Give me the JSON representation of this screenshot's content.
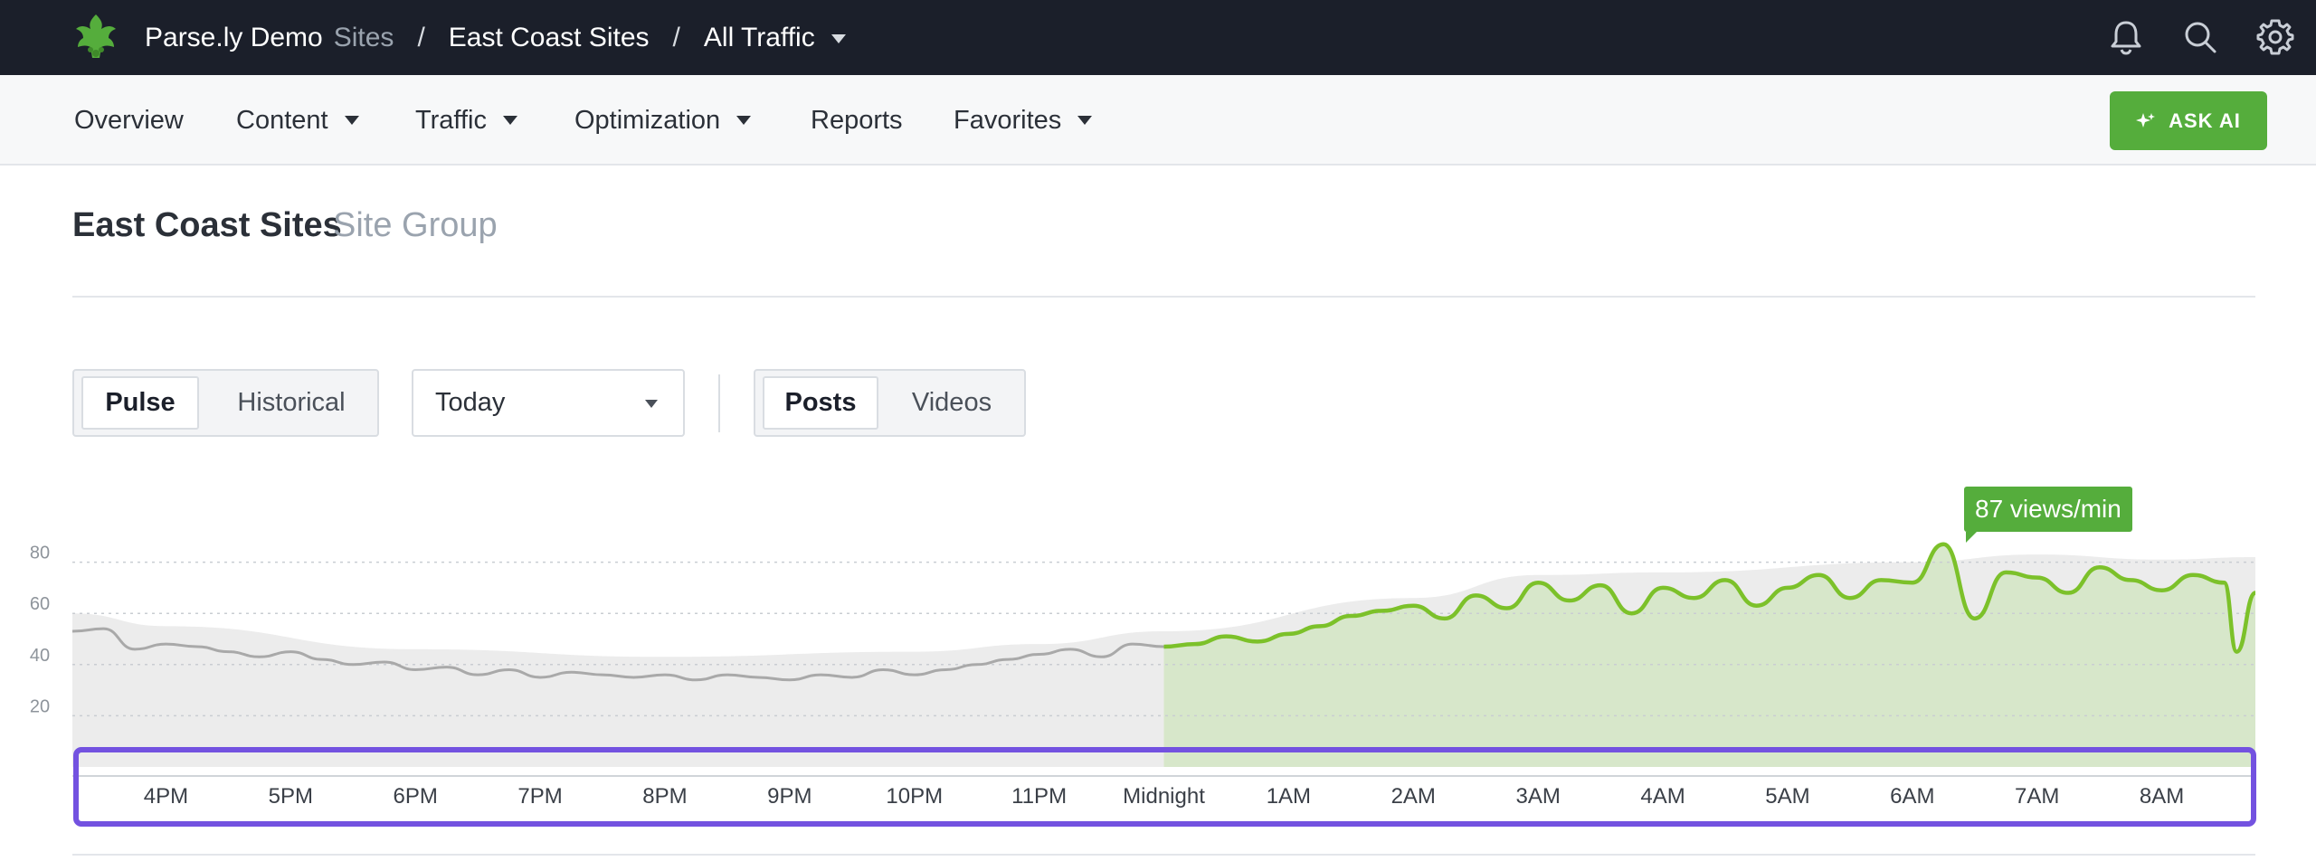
{
  "topbar": {
    "app_name": "Parse.ly Demo",
    "sites_label": "Sites",
    "crumb_sep": "/",
    "crumb_group": "East Coast Sites",
    "crumb_view": "All Traffic",
    "background": "#1b1f2a",
    "icons": [
      "bell-icon",
      "search-icon",
      "gear-icon",
      "user-icon"
    ]
  },
  "nav": {
    "items": [
      {
        "label": "Overview",
        "has_menu": false
      },
      {
        "label": "Content",
        "has_menu": true
      },
      {
        "label": "Traffic",
        "has_menu": true
      },
      {
        "label": "Optimization",
        "has_menu": true
      },
      {
        "label": "Reports",
        "has_menu": false
      },
      {
        "label": "Favorites",
        "has_menu": true
      }
    ],
    "ask_ai_label": "ASK AI",
    "accent": "#55ad3c"
  },
  "header": {
    "title": "East Coast Sites",
    "subtitle": "Site Group"
  },
  "controls": {
    "mode": {
      "options": [
        "Pulse",
        "Historical"
      ],
      "selected": "Pulse"
    },
    "period": {
      "value": "Today"
    },
    "content_type": {
      "options": [
        "Posts",
        "Videos"
      ],
      "selected": "Posts"
    }
  },
  "chart_data": {
    "type": "line",
    "tooltip": "87 views/min",
    "y_ticks": [
      "80",
      "60",
      "40",
      "20"
    ],
    "ylim": [
      0,
      100
    ],
    "grid": true,
    "x_ticks": [
      "4PM",
      "5PM",
      "6PM",
      "7PM",
      "8PM",
      "9PM",
      "10PM",
      "11PM",
      "Midnight",
      "1AM",
      "2AM",
      "3AM",
      "4AM",
      "5AM",
      "6AM",
      "7AM",
      "8AM"
    ],
    "x_range": [
      -0.75,
      16.75
    ],
    "colors": {
      "previous": "#a9a9a9",
      "today": "#7cc12a",
      "today_fill": "#d5e7c7",
      "band": "#ececec"
    },
    "series": [
      {
        "key": "previous",
        "x": [
          -0.75,
          -0.5,
          -0.25,
          0,
          0.25,
          0.5,
          0.75,
          1,
          1.25,
          1.5,
          1.75,
          2,
          2.25,
          2.5,
          2.75,
          3,
          3.25,
          3.5,
          3.75,
          4,
          4.25,
          4.5,
          4.75,
          5,
          5.25,
          5.5,
          5.75,
          6,
          6.25,
          6.5,
          6.75,
          7,
          7.25,
          7.5,
          7.75,
          8
        ],
        "values": [
          53,
          54,
          46,
          48,
          47,
          45,
          43,
          45,
          42,
          40,
          41,
          38,
          39,
          36,
          38,
          35,
          37,
          36,
          35,
          36,
          34,
          36,
          35,
          34,
          36,
          35,
          38,
          36,
          38,
          40,
          42,
          44,
          46,
          43,
          48,
          47
        ]
      },
      {
        "key": "today",
        "x": [
          8,
          8.25,
          8.5,
          8.75,
          9,
          9.25,
          9.5,
          9.75,
          10,
          10.25,
          10.5,
          10.75,
          11,
          11.25,
          11.5,
          11.75,
          12,
          12.25,
          12.5,
          12.75,
          13,
          13.25,
          13.5,
          13.75,
          14,
          14.25,
          14.5,
          14.75,
          15,
          15.25,
          15.5,
          15.75,
          16,
          16.25,
          16.5,
          16.6,
          16.75
        ],
        "values": [
          47,
          48,
          51,
          49,
          52,
          55,
          59,
          61,
          63,
          58,
          67,
          62,
          72,
          65,
          71,
          60,
          70,
          66,
          73,
          63,
          70,
          75,
          66,
          73,
          72,
          87,
          58,
          76,
          74,
          68,
          78,
          73,
          69,
          75,
          72,
          45,
          68
        ]
      }
    ],
    "band_upper": [
      {
        "x": -0.75,
        "y": 60
      },
      {
        "x": 0,
        "y": 55
      },
      {
        "x": 2,
        "y": 46
      },
      {
        "x": 4,
        "y": 43
      },
      {
        "x": 6,
        "y": 45
      },
      {
        "x": 7,
        "y": 48
      },
      {
        "x": 8,
        "y": 53
      },
      {
        "x": 10,
        "y": 66
      },
      {
        "x": 11,
        "y": 75
      },
      {
        "x": 12,
        "y": 76
      },
      {
        "x": 14,
        "y": 80
      },
      {
        "x": 15,
        "y": 83
      },
      {
        "x": 16,
        "y": 81
      },
      {
        "x": 16.75,
        "y": 82
      }
    ]
  }
}
